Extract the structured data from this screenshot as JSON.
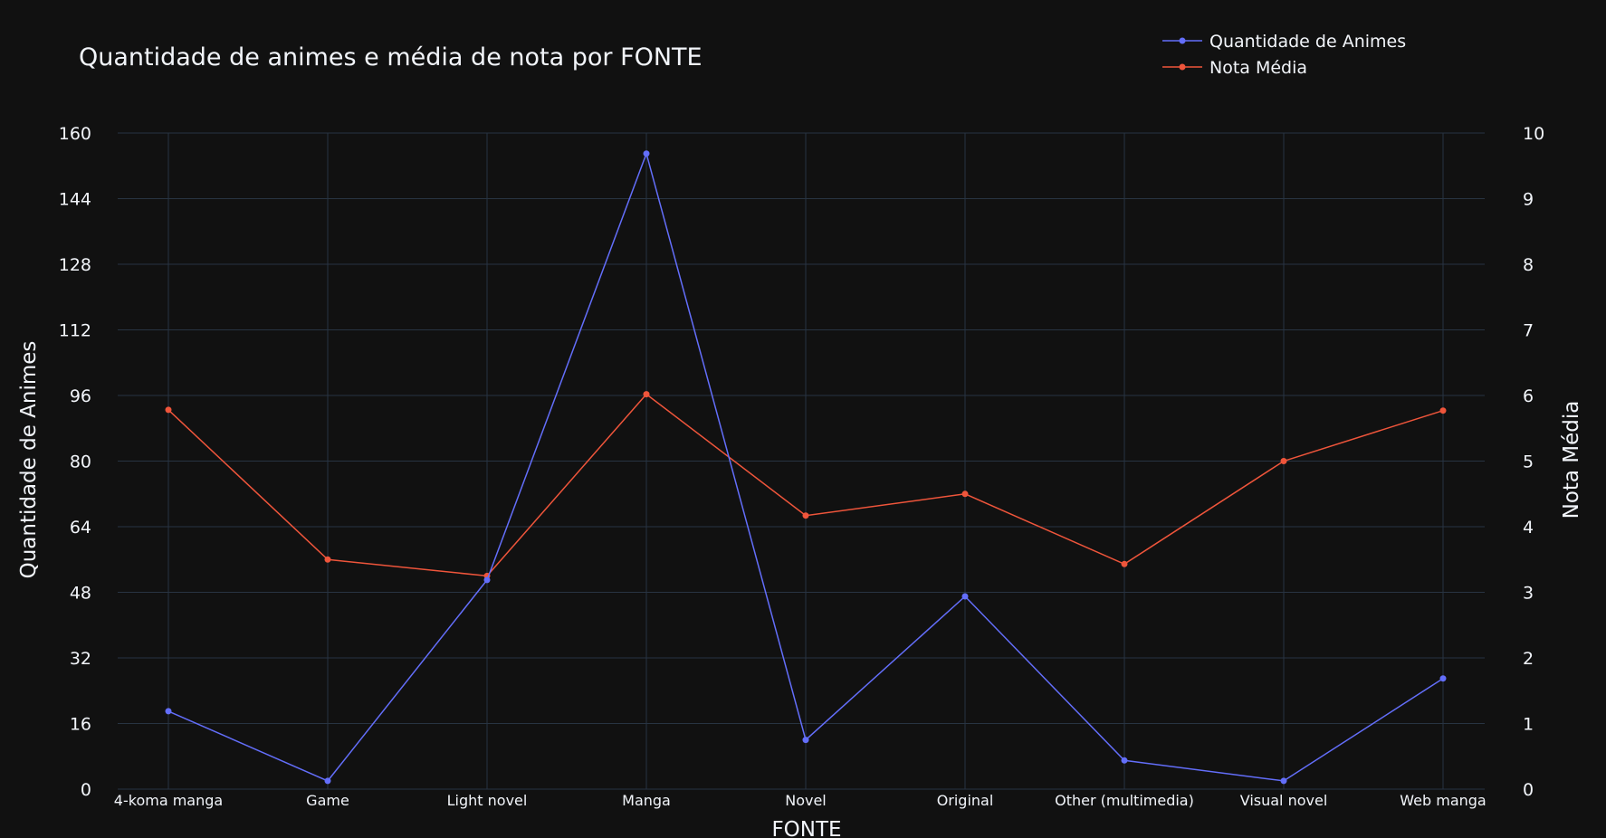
{
  "chart_data": {
    "type": "line",
    "title": "Quantidade de animes e média de nota por FONTE",
    "xlabel": "FONTE",
    "ylabel": "Quantidade de Animes",
    "y2label": "Nota Média",
    "categories": [
      "4-koma manga",
      "Game",
      "Light novel",
      "Manga",
      "Novel",
      "Original",
      "Other (multimedia)",
      "Visual novel",
      "Web manga"
    ],
    "ylim": [
      0,
      160
    ],
    "y2lim": [
      0,
      10
    ],
    "yticks": [
      "0",
      "16",
      "32",
      "48",
      "64",
      "80",
      "96",
      "112",
      "128",
      "144",
      "160"
    ],
    "y2ticks": [
      "0",
      "1",
      "2",
      "3",
      "4",
      "5",
      "6",
      "7",
      "8",
      "9",
      "10"
    ],
    "grid": true,
    "legend_position": "top-right",
    "series": [
      {
        "name": "Quantidade de Animes",
        "axis": "left",
        "color": "#636efa",
        "values": [
          19,
          2,
          51,
          155,
          12,
          47,
          7,
          2,
          27
        ]
      },
      {
        "name": "Nota Média",
        "axis": "right",
        "color": "#ef553b",
        "values": [
          5.78,
          3.5,
          3.25,
          6.02,
          4.17,
          4.5,
          3.43,
          5.0,
          5.77
        ]
      }
    ]
  }
}
